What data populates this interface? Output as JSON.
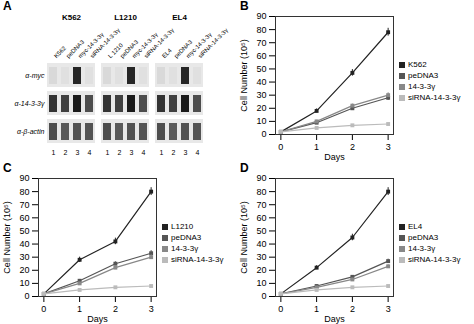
{
  "chart_data": [
    {
      "type": "blot",
      "title": "A",
      "groups": [
        "K562",
        "L1210",
        "EL4"
      ],
      "lane_labels": [
        [
          "K562",
          "peDNA3",
          "myc-14-3-3γ",
          "siRNA-14-3-3γ"
        ],
        [
          "L 1210",
          "peDNA3",
          "myc-14-3-3γ",
          "siRNA-14-3-3γ"
        ],
        [
          "EL4",
          "peDNA3",
          "myc-14-3-3γ",
          "siRNA-14-3-3γ"
        ]
      ],
      "lane_numbers": [
        1,
        2,
        3,
        4
      ],
      "antibodies": [
        "α-myc",
        "α-14-3-3γ",
        "α-β-actin"
      ],
      "intensities": [
        [
          [
            0.15,
            0.12,
            0.85,
            0.12
          ],
          [
            0.15,
            0.12,
            0.85,
            0.12
          ],
          [
            0.15,
            0.12,
            0.85,
            0.12
          ]
        ],
        [
          [
            0.8,
            0.75,
            0.9,
            0.7
          ],
          [
            0.8,
            0.75,
            0.9,
            0.7
          ],
          [
            0.8,
            0.75,
            0.9,
            0.7
          ]
        ],
        [
          [
            0.7,
            0.65,
            0.68,
            0.67
          ],
          [
            0.7,
            0.65,
            0.68,
            0.67
          ],
          [
            0.7,
            0.65,
            0.68,
            0.67
          ]
        ]
      ]
    },
    {
      "type": "line",
      "title": "B",
      "xlabel": "Days",
      "ylabel": "Cell Number (10⁵)",
      "x": [
        0,
        1,
        2,
        3
      ],
      "xlim": [
        -0.15,
        3.15
      ],
      "xticks": [
        0,
        1,
        2,
        3
      ],
      "ylim": [
        0,
        90
      ],
      "yticks": [
        0,
        10,
        20,
        30,
        40,
        50,
        60,
        70,
        80,
        90
      ],
      "legend": "right",
      "series": [
        {
          "name": "K562",
          "values": [
            2,
            18,
            47,
            78
          ],
          "errors": [
            0.3,
            1.5,
            2.5,
            3.0
          ],
          "color": "#222222",
          "marker": "square"
        },
        {
          "name": "peDNA3",
          "values": [
            2,
            9,
            20,
            28
          ],
          "errors": [
            0.2,
            1.0,
            1.5,
            2.0
          ],
          "color": "#555555",
          "marker": "square"
        },
        {
          "name": "14-3-3γ",
          "values": [
            2,
            10,
            22,
            30
          ],
          "errors": [
            0.2,
            0.8,
            1.2,
            1.8
          ],
          "color": "#888888",
          "marker": "square"
        },
        {
          "name": "siRNA-14-3-3γ",
          "values": [
            2,
            5,
            7,
            8
          ],
          "errors": [
            0.1,
            0.3,
            0.4,
            0.5
          ],
          "color": "#bbbbbb",
          "marker": "square"
        }
      ]
    },
    {
      "type": "line",
      "title": "C",
      "xlabel": "Days",
      "ylabel": "Cell Number (10⁵)",
      "x": [
        0,
        1,
        2,
        3
      ],
      "xlim": [
        -0.15,
        3.15
      ],
      "xticks": [
        0,
        1,
        2,
        3
      ],
      "ylim": [
        0,
        90
      ],
      "yticks": [
        0,
        10,
        20,
        30,
        40,
        50,
        60,
        70,
        80,
        90
      ],
      "legend": "right",
      "series": [
        {
          "name": "L1210",
          "values": [
            2,
            28,
            42,
            80
          ],
          "errors": [
            0.3,
            2.0,
            2.5,
            3.0
          ],
          "color": "#222222",
          "marker": "square"
        },
        {
          "name": "peDNA3",
          "values": [
            2,
            12,
            25,
            33
          ],
          "errors": [
            0.2,
            1.0,
            1.5,
            2.0
          ],
          "color": "#555555",
          "marker": "square"
        },
        {
          "name": "14-3-3γ",
          "values": [
            2,
            10,
            22,
            30
          ],
          "errors": [
            0.2,
            0.8,
            1.2,
            1.8
          ],
          "color": "#888888",
          "marker": "square"
        },
        {
          "name": "siRNA-14-3-3γ",
          "values": [
            2,
            5,
            7,
            8
          ],
          "errors": [
            0.1,
            0.3,
            0.4,
            0.5
          ],
          "color": "#bbbbbb",
          "marker": "square"
        }
      ]
    },
    {
      "type": "line",
      "title": "D",
      "xlabel": "Days",
      "ylabel": "Cell Number (10⁵)",
      "x": [
        0,
        1,
        2,
        3
      ],
      "xlim": [
        -0.15,
        3.15
      ],
      "xticks": [
        0,
        1,
        2,
        3
      ],
      "ylim": [
        0,
        90
      ],
      "yticks": [
        0,
        10,
        20,
        30,
        40,
        50,
        60,
        70,
        80,
        90
      ],
      "legend": "right",
      "series": [
        {
          "name": "EL4",
          "values": [
            2,
            22,
            45,
            80
          ],
          "errors": [
            0.3,
            1.5,
            2.5,
            3.0
          ],
          "color": "#222222",
          "marker": "square"
        },
        {
          "name": "peDNA3",
          "values": [
            2,
            8,
            15,
            27
          ],
          "errors": [
            0.2,
            0.8,
            1.0,
            1.5
          ],
          "color": "#555555",
          "marker": "square"
        },
        {
          "name": "14-3-3γ",
          "values": [
            2,
            7,
            13,
            23
          ],
          "errors": [
            0.2,
            0.6,
            0.8,
            1.2
          ],
          "color": "#888888",
          "marker": "square"
        },
        {
          "name": "siRNA-14-3-3γ",
          "values": [
            2,
            5,
            7,
            8
          ],
          "errors": [
            0.1,
            0.3,
            0.4,
            0.5
          ],
          "color": "#bbbbbb",
          "marker": "square"
        }
      ]
    }
  ]
}
